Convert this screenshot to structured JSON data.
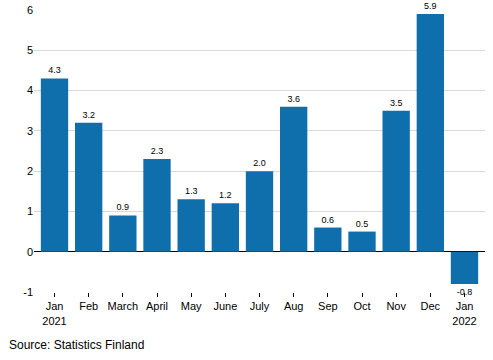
{
  "chart_data": {
    "type": "bar",
    "categories": [
      "Jan 2021",
      "Feb",
      "March",
      "April",
      "May",
      "June",
      "July",
      "Aug",
      "Sep",
      "Oct",
      "Nov",
      "Dec",
      "Jan 2022"
    ],
    "values": [
      4.3,
      3.2,
      0.9,
      2.3,
      1.3,
      1.2,
      2.0,
      3.6,
      0.6,
      0.5,
      3.5,
      5.9,
      -0.8
    ],
    "value_labels": [
      "4.3",
      "3.2",
      "0.9",
      "2.3",
      "1.3",
      "1.2",
      "2.0",
      "3.6",
      "0.6",
      "0.5",
      "3.5",
      "5.9",
      "-0.8"
    ],
    "color": "#0f6fad",
    "ylim": [
      -1,
      6
    ],
    "yticks": [
      -1,
      0,
      1,
      2,
      3,
      4,
      5,
      6
    ],
    "grid": true,
    "data_labels": true,
    "source": "Source: Statistics Finland"
  }
}
